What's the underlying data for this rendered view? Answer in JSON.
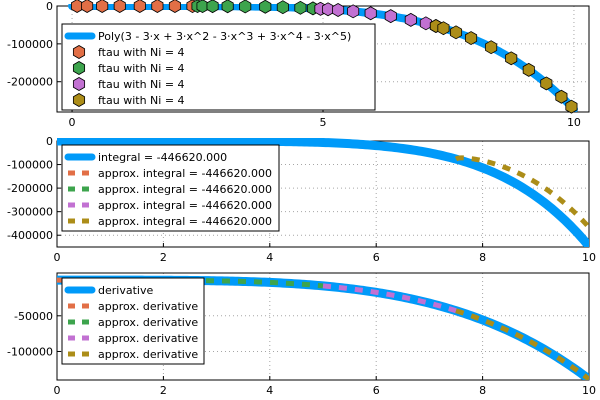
{
  "chart_data": [
    {
      "type": "scatter",
      "xlim": [
        -0.3,
        10.3
      ],
      "ylim": [
        -280000,
        0
      ],
      "xticks": [
        0,
        5,
        10
      ],
      "yticks": [
        0,
        -100000,
        -200000
      ],
      "ytick_labels": [
        "0",
        "-100000",
        "-200000"
      ],
      "grid": true,
      "legend_position": "bottom-left",
      "curve": {
        "name": "Poly(3 - 3⋅x + 3⋅x^2 - 3⋅x^3 + 3⋅x^4 - 3⋅x^5)",
        "color": "#009af9",
        "coefficients": [
          3,
          -3,
          3,
          -3,
          3,
          -3
        ]
      },
      "series": [
        {
          "name": "ftau with Ni = 4",
          "color": "#e26f46",
          "x": [
            0.1,
            0.3,
            0.6,
            0.95,
            1.35,
            1.7,
            2.05,
            2.4
          ]
        },
        {
          "name": "ftau with Ni = 4",
          "color": "#3da44d",
          "x": [
            2.5,
            2.6,
            2.8,
            3.1,
            3.45,
            3.85,
            4.2,
            4.55,
            4.8,
            4.95
          ]
        },
        {
          "name": "ftau with Ni = 4",
          "color": "#c271d2",
          "x": [
            4.95,
            5.1,
            5.3,
            5.6,
            5.95,
            6.35,
            6.75,
            7.05,
            7.25
          ]
        },
        {
          "name": "ftau with Ni = 4",
          "color": "#ac8d18",
          "x": [
            7.25,
            7.4,
            7.65,
            7.95,
            8.35,
            8.75,
            9.1,
            9.45,
            9.75,
            9.95
          ]
        }
      ]
    },
    {
      "type": "line",
      "xlim": [
        0,
        10
      ],
      "ylim": [
        -450000,
        0
      ],
      "xticks": [
        0,
        2,
        4,
        6,
        8,
        10
      ],
      "yticks": [
        0,
        -100000,
        -200000,
        -300000,
        -400000
      ],
      "ytick_labels": [
        "0",
        "-100000",
        "-200000",
        "-300000",
        "-400000"
      ],
      "grid": true,
      "legend_position": "top-left",
      "series": [
        {
          "name": "integral = -446620.000",
          "color": "#009af9",
          "style": "solid"
        },
        {
          "name": "approx. integral = -446620.000",
          "color": "#e26f46",
          "style": "dashed",
          "x_range": [
            0,
            2.5
          ]
        },
        {
          "name": "approx. integral = -446620.000",
          "color": "#3da44d",
          "style": "dashed",
          "x_range": [
            2.5,
            5
          ]
        },
        {
          "name": "approx. integral = -446620.000",
          "color": "#c271d2",
          "style": "dashed",
          "x_range": [
            5,
            7.5
          ]
        },
        {
          "name": "approx. integral = -446620.000",
          "color": "#ac8d18",
          "style": "dashed",
          "x_range": [
            7.5,
            10
          ]
        }
      ]
    },
    {
      "type": "line",
      "xlim": [
        0,
        10
      ],
      "ylim": [
        -140000,
        10000
      ],
      "xticks": [
        0,
        2,
        4,
        6,
        8,
        10
      ],
      "yticks": [
        -50000,
        -100000
      ],
      "ytick_labels": [
        "-50000",
        "-100000"
      ],
      "grid": true,
      "legend_position": "top-left",
      "series": [
        {
          "name": "derivative",
          "color": "#009af9",
          "style": "solid"
        },
        {
          "name": "approx. derivative",
          "color": "#e26f46",
          "style": "dashed",
          "x_range": [
            0,
            2.5
          ]
        },
        {
          "name": "approx. derivative",
          "color": "#3da44d",
          "style": "dashed",
          "x_range": [
            2.5,
            5
          ]
        },
        {
          "name": "approx. derivative",
          "color": "#c271d2",
          "style": "dashed",
          "x_range": [
            5,
            7.5
          ]
        },
        {
          "name": "approx. derivative",
          "color": "#ac8d18",
          "style": "dashed",
          "x_range": [
            7.5,
            10
          ]
        }
      ]
    }
  ]
}
